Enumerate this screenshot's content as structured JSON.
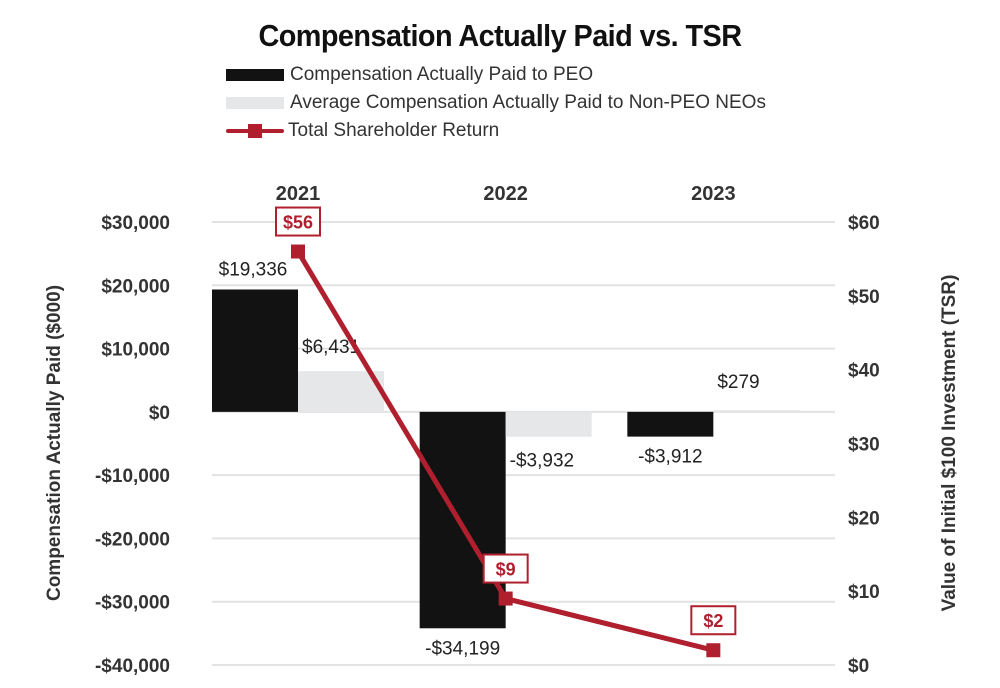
{
  "chart_data": {
    "type": "bar",
    "title": "Compensation Actually Paid vs. TSR",
    "categories": [
      "2021",
      "2022",
      "2023"
    ],
    "series": [
      {
        "name": "Compensation Actually Paid to PEO",
        "kind": "bar",
        "axis": "left",
        "color": "#121212",
        "values": [
          19336,
          -34199,
          -3912
        ],
        "labels": [
          "$19,336",
          "-$34,199",
          "-$3,912"
        ]
      },
      {
        "name": "Average Compensation Actually Paid to Non-PEO NEOs",
        "kind": "bar",
        "axis": "left",
        "color": "#e6e7e9",
        "values": [
          6431,
          -3932,
          279
        ],
        "labels": [
          "$6,431",
          "-$3,932",
          "$279"
        ]
      },
      {
        "name": "Total Shareholder Return",
        "kind": "line",
        "axis": "right",
        "color": "#b01f2e",
        "values": [
          56,
          9,
          2
        ],
        "labels": [
          "$56",
          "$9",
          "$2"
        ]
      }
    ],
    "ylabel": "Compensation Actually Paid ($000)",
    "ylim": [
      -40000,
      30000
    ],
    "yticks": [
      30000,
      20000,
      10000,
      0,
      -10000,
      -20000,
      -30000,
      -40000
    ],
    "ytick_labels": [
      "$30,000",
      "$20,000",
      "$10,000",
      "$0",
      "-$10,000",
      "-$20,000",
      "-$30,000",
      "-$40,000"
    ],
    "y2label": "Value of Initial $100 Investment (TSR)",
    "y2lim": [
      0,
      60
    ],
    "y2ticks": [
      60,
      50,
      40,
      30,
      20,
      10,
      0
    ],
    "y2tick_labels": [
      "$60",
      "$50",
      "$40",
      "$30",
      "$20",
      "$10",
      "$0"
    ],
    "grid": true,
    "legend_position": "top-left",
    "category_label_position": "top"
  }
}
